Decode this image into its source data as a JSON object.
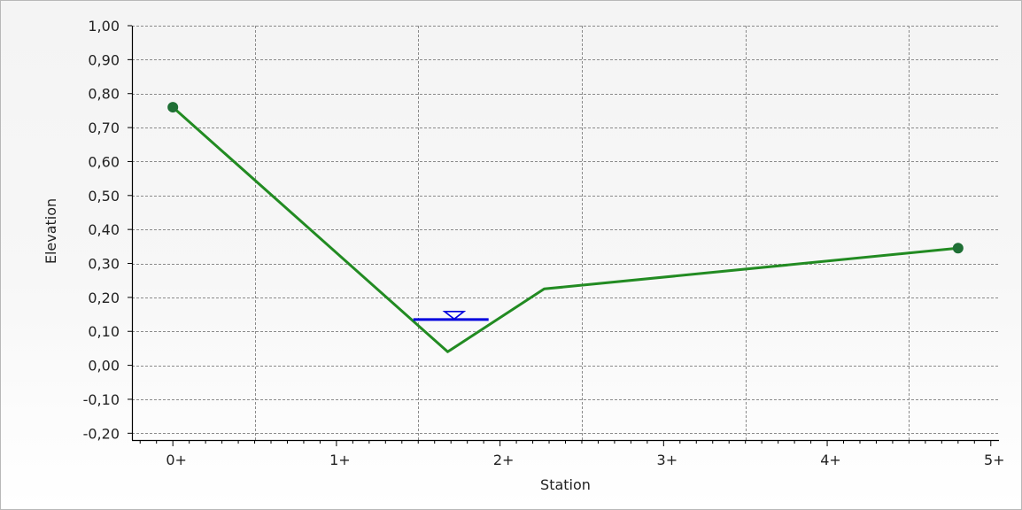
{
  "chart_data": {
    "type": "line",
    "title": "",
    "xlabel": "Station",
    "ylabel": "Elevation",
    "xlim": [
      -0.25,
      5.05
    ],
    "ylim": [
      -0.22,
      1.0
    ],
    "grid": true,
    "y_ticks": [
      {
        "value": 1.0,
        "label": "1,00"
      },
      {
        "value": 0.9,
        "label": "0,90"
      },
      {
        "value": 0.8,
        "label": "0,80"
      },
      {
        "value": 0.7,
        "label": "0,70"
      },
      {
        "value": 0.6,
        "label": "0,60"
      },
      {
        "value": 0.5,
        "label": "0,50"
      },
      {
        "value": 0.4,
        "label": "0,40"
      },
      {
        "value": 0.3,
        "label": "0,30"
      },
      {
        "value": 0.2,
        "label": "0,20"
      },
      {
        "value": 0.1,
        "label": "0,10"
      },
      {
        "value": 0.0,
        "label": "0,00"
      },
      {
        "value": -0.1,
        "label": "-0,10"
      },
      {
        "value": -0.2,
        "label": "-0,20"
      }
    ],
    "x_ticks": [
      {
        "value": 0,
        "label": "0+"
      },
      {
        "value": 1,
        "label": "1+"
      },
      {
        "value": 2,
        "label": "2+"
      },
      {
        "value": 3,
        "label": "3+"
      },
      {
        "value": 4,
        "label": "4+"
      },
      {
        "value": 5,
        "label": "5+"
      }
    ],
    "x_gridlines": [
      0.5,
      1.5,
      2.5,
      3.5,
      4.5
    ],
    "y_gridlines": [
      1.0,
      0.9,
      0.8,
      0.7,
      0.6,
      0.5,
      0.4,
      0.3,
      0.2,
      0.1,
      0.0,
      -0.1,
      -0.2
    ],
    "series": [
      {
        "type": "line",
        "color": "#228b22",
        "points": [
          {
            "x": 0.0,
            "y": 0.76
          },
          {
            "x": 1.68,
            "y": 0.04
          },
          {
            "x": 2.27,
            "y": 0.225
          },
          {
            "x": 4.8,
            "y": 0.345
          }
        ],
        "endpoint_markers": true
      }
    ],
    "water_level": {
      "color": "#0000dd",
      "y": 0.135,
      "x_start": 1.47,
      "x_end": 1.93,
      "marker_x": 1.72,
      "marker": "inverted-triangle"
    }
  }
}
